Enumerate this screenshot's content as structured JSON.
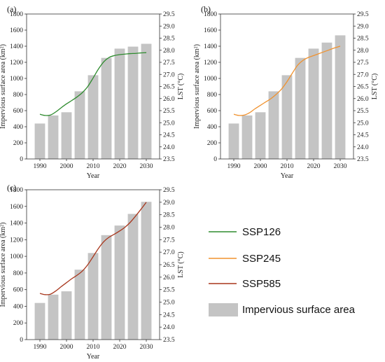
{
  "chart_data": [
    {
      "type": "bar",
      "panel_label": "(a)",
      "x": [
        1990,
        1995,
        2000,
        2005,
        2010,
        2015,
        2020,
        2025,
        2030
      ],
      "bar_values": [
        440,
        540,
        580,
        840,
        1040,
        1255,
        1370,
        1395,
        1430
      ],
      "lst_series": {
        "name": "SSP126",
        "color": "#2e8b2e",
        "x": [
          1990,
          1992,
          1994,
          1996,
          1998,
          2000,
          2002,
          2004,
          2006,
          2008,
          2010,
          2012,
          2014,
          2016,
          2018,
          2020,
          2022,
          2024,
          2026,
          2028,
          2030
        ],
        "y": [
          25.35,
          25.3,
          25.32,
          25.45,
          25.62,
          25.78,
          25.92,
          26.07,
          26.25,
          26.5,
          26.85,
          27.22,
          27.52,
          27.7,
          27.78,
          27.82,
          27.84,
          27.86,
          27.87,
          27.89,
          27.9
        ]
      },
      "xlabel": "Year",
      "ylabel": "Impervious surface area (km²)",
      "y2label": "LST (°C)",
      "xticks": [
        "1990",
        "2000",
        "2010",
        "2020",
        "2030"
      ],
      "yticks": [
        "0",
        "200",
        "400",
        "600",
        "800",
        "1000",
        "1200",
        "1400",
        "1600",
        "1800"
      ],
      "y2ticks": [
        "23.5",
        "24.0",
        "24.5",
        "25.0",
        "25.5",
        "26.0",
        "26.5",
        "27.0",
        "27.5",
        "28.0",
        "28.5",
        "29.0",
        "29.5"
      ],
      "ylim": [
        0,
        1800
      ],
      "y2lim": [
        23.5,
        29.5
      ],
      "xlim": [
        1985,
        2035
      ]
    },
    {
      "type": "bar",
      "panel_label": "(b)",
      "x": [
        1990,
        1995,
        2000,
        2005,
        2010,
        2015,
        2020,
        2025,
        2030
      ],
      "bar_values": [
        440,
        540,
        580,
        840,
        1040,
        1255,
        1370,
        1445,
        1535
      ],
      "lst_series": {
        "name": "SSP245",
        "color": "#f0922f",
        "x": [
          1990,
          1992,
          1994,
          1996,
          1998,
          2000,
          2002,
          2004,
          2006,
          2008,
          2010,
          2012,
          2014,
          2016,
          2018,
          2020,
          2022,
          2024,
          2026,
          2028,
          2030
        ],
        "y": [
          25.35,
          25.3,
          25.32,
          25.42,
          25.58,
          25.72,
          25.86,
          26.0,
          26.18,
          26.4,
          26.7,
          27.05,
          27.38,
          27.58,
          27.7,
          27.78,
          27.86,
          27.94,
          28.02,
          28.1,
          28.17
        ]
      },
      "xlabel": "Year",
      "ylabel": "Impervious surface area (km²)",
      "y2label": "LST (°C)",
      "xticks": [
        "1990",
        "2000",
        "2010",
        "2020",
        "2030"
      ],
      "yticks": [
        "0",
        "200",
        "400",
        "600",
        "800",
        "1000",
        "1200",
        "1400",
        "1600",
        "1800"
      ],
      "y2ticks": [
        "23.5",
        "24.0",
        "24.5",
        "25.0",
        "25.5",
        "26.0",
        "26.5",
        "27.0",
        "27.5",
        "28.0",
        "28.5",
        "29.0",
        "29.5"
      ],
      "ylim": [
        0,
        1800
      ],
      "y2lim": [
        23.5,
        29.5
      ],
      "xlim": [
        1985,
        2035
      ]
    },
    {
      "type": "bar",
      "panel_label": "(c)",
      "x": [
        1990,
        1995,
        2000,
        2005,
        2010,
        2015,
        2020,
        2025,
        2030
      ],
      "bar_values": [
        440,
        540,
        580,
        840,
        1040,
        1255,
        1370,
        1510,
        1655
      ],
      "lst_series": {
        "name": "SSP585",
        "color": "#a8361c",
        "x": [
          1990,
          1992,
          1994,
          1996,
          1998,
          2000,
          2002,
          2004,
          2006,
          2008,
          2010,
          2012,
          2014,
          2016,
          2018,
          2020,
          2022,
          2024,
          2026,
          2028,
          2030
        ],
        "y": [
          25.35,
          25.3,
          25.32,
          25.45,
          25.62,
          25.78,
          25.94,
          26.08,
          26.25,
          26.5,
          26.82,
          27.15,
          27.42,
          27.6,
          27.72,
          27.85,
          28.0,
          28.2,
          28.45,
          28.72,
          29.0
        ]
      },
      "xlabel": "Year",
      "ylabel": "Impervious surface area (km²)",
      "y2label": "LST (°C)",
      "xticks": [
        "1990",
        "2000",
        "2010",
        "2020",
        "2030"
      ],
      "yticks": [
        "0",
        "200",
        "400",
        "600",
        "800",
        "1000",
        "1200",
        "1400",
        "1600",
        "1800"
      ],
      "y2ticks": [
        "23.5",
        "24.0",
        "24.5",
        "25.0",
        "25.5",
        "26.0",
        "26.5",
        "27.0",
        "27.5",
        "28.0",
        "28.5",
        "29.0",
        "29.5"
      ],
      "ylim": [
        0,
        1800
      ],
      "y2lim": [
        23.5,
        29.5
      ],
      "xlim": [
        1985,
        2035
      ]
    }
  ],
  "legend": {
    "items": [
      {
        "label": "SSP126",
        "type": "line",
        "color": "#2e8b2e"
      },
      {
        "label": "SSP245",
        "type": "line",
        "color": "#f0922f"
      },
      {
        "label": "SSP585",
        "type": "line",
        "color": "#a8361c"
      },
      {
        "label": "Impervious surface area",
        "type": "bar",
        "color": "#c4c4c4"
      }
    ]
  },
  "colors": {
    "bar": "#c4c4c4",
    "axis": "#333333"
  }
}
